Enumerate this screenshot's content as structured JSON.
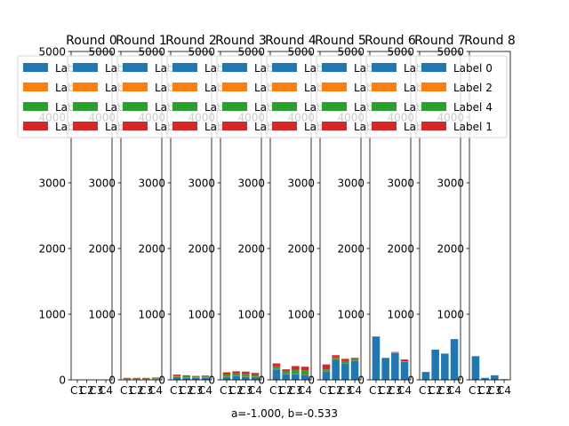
{
  "figure": {
    "suptitle_bottom": "a=-1.000, b=-0.533",
    "colors": {
      "Label 0": "#1f77b4",
      "Label 2": "#ff7f0e",
      "Label 4": "#2ca02c",
      "Label 1": "#d62728"
    }
  },
  "chart_data": [
    {
      "type": "bar",
      "stacked": true,
      "title": "Round 0",
      "categories": [
        "C1",
        "C2",
        "C3",
        "C4"
      ],
      "ylim": [
        0,
        5000
      ],
      "yticks": [
        0,
        1000,
        2000,
        3000,
        4000,
        5000
      ],
      "legend": "upper left",
      "series": [
        {
          "name": "Label 0",
          "values": [
            0,
            0,
            0,
            0
          ]
        },
        {
          "name": "Label 2",
          "values": [
            0,
            0,
            0,
            0
          ]
        },
        {
          "name": "Label 4",
          "values": [
            0,
            0,
            0,
            0
          ]
        },
        {
          "name": "Label 1",
          "values": [
            0,
            0,
            0,
            0
          ]
        }
      ]
    },
    {
      "type": "bar",
      "stacked": true,
      "title": "Round 1",
      "categories": [
        "C1",
        "C2",
        "C3",
        "C4"
      ],
      "ylim": [
        0,
        5000
      ],
      "yticks": [
        0,
        1000,
        2000,
        3000,
        4000,
        5000
      ],
      "legend": "upper left",
      "series": [
        {
          "name": "Label 0",
          "values": [
            10,
            10,
            10,
            10
          ]
        },
        {
          "name": "Label 2",
          "values": [
            5,
            5,
            5,
            5
          ]
        },
        {
          "name": "Label 4",
          "values": [
            5,
            5,
            5,
            10
          ]
        },
        {
          "name": "Label 1",
          "values": [
            10,
            10,
            10,
            10
          ]
        }
      ]
    },
    {
      "type": "bar",
      "stacked": true,
      "title": "Round 2",
      "categories": [
        "C1",
        "C2",
        "C3",
        "C4"
      ],
      "ylim": [
        0,
        5000
      ],
      "yticks": [
        0,
        1000,
        2000,
        3000,
        4000,
        5000
      ],
      "legend": "upper left",
      "series": [
        {
          "name": "Label 0",
          "values": [
            40,
            30,
            30,
            30
          ]
        },
        {
          "name": "Label 2",
          "values": [
            5,
            5,
            5,
            5
          ]
        },
        {
          "name": "Label 4",
          "values": [
            20,
            20,
            15,
            15
          ]
        },
        {
          "name": "Label 1",
          "values": [
            15,
            15,
            10,
            15
          ]
        }
      ]
    },
    {
      "type": "bar",
      "stacked": true,
      "title": "Round 3",
      "categories": [
        "C1",
        "C2",
        "C3",
        "C4"
      ],
      "ylim": [
        0,
        5000
      ],
      "yticks": [
        0,
        1000,
        2000,
        3000,
        4000,
        5000
      ],
      "legend": "upper left",
      "series": [
        {
          "name": "Label 0",
          "values": [
            40,
            60,
            50,
            40
          ]
        },
        {
          "name": "Label 2",
          "values": [
            5,
            5,
            5,
            5
          ]
        },
        {
          "name": "Label 4",
          "values": [
            35,
            35,
            35,
            30
          ]
        },
        {
          "name": "Label 1",
          "values": [
            35,
            30,
            35,
            30
          ]
        }
      ]
    },
    {
      "type": "bar",
      "stacked": true,
      "title": "Round 4",
      "categories": [
        "C1",
        "C2",
        "C3",
        "C4"
      ],
      "ylim": [
        0,
        5000
      ],
      "yticks": [
        0,
        1000,
        2000,
        3000,
        4000,
        5000
      ],
      "legend": "upper left",
      "series": [
        {
          "name": "Label 0",
          "values": [
            160,
            90,
            90,
            75
          ]
        },
        {
          "name": "Label 2",
          "values": [
            5,
            5,
            5,
            5
          ]
        },
        {
          "name": "Label 4",
          "values": [
            40,
            35,
            60,
            65
          ]
        },
        {
          "name": "Label 1",
          "values": [
            45,
            30,
            55,
            55
          ]
        }
      ]
    },
    {
      "type": "bar",
      "stacked": true,
      "title": "Round 5",
      "categories": [
        "C1",
        "C2",
        "C3",
        "C4"
      ],
      "ylim": [
        0,
        5000
      ],
      "yticks": [
        0,
        1000,
        2000,
        3000,
        4000,
        5000
      ],
      "legend": "upper left",
      "series": [
        {
          "name": "Label 0",
          "values": [
            130,
            310,
            250,
            290
          ]
        },
        {
          "name": "Label 2",
          "values": [
            5,
            5,
            5,
            5
          ]
        },
        {
          "name": "Label 4",
          "values": [
            25,
            25,
            30,
            25
          ]
        },
        {
          "name": "Label 1",
          "values": [
            75,
            35,
            35,
            15
          ]
        }
      ]
    },
    {
      "type": "bar",
      "stacked": true,
      "title": "Round 6",
      "categories": [
        "C1",
        "C2",
        "C3",
        "C4"
      ],
      "ylim": [
        0,
        5000
      ],
      "yticks": [
        0,
        1000,
        2000,
        3000,
        4000,
        5000
      ],
      "legend": "upper left",
      "series": [
        {
          "name": "Label 0",
          "values": [
            660,
            330,
            410,
            270
          ]
        },
        {
          "name": "Label 2",
          "values": [
            0,
            0,
            5,
            5
          ]
        },
        {
          "name": "Label 4",
          "values": [
            0,
            0,
            5,
            5
          ]
        },
        {
          "name": "Label 1",
          "values": [
            0,
            5,
            5,
            30
          ]
        }
      ]
    },
    {
      "type": "bar",
      "stacked": true,
      "title": "Round 7",
      "categories": [
        "C1",
        "C2",
        "C3",
        "C4"
      ],
      "ylim": [
        0,
        5000
      ],
      "yticks": [
        0,
        1000,
        2000,
        3000,
        4000,
        5000
      ],
      "legend": "upper left",
      "series": [
        {
          "name": "Label 0",
          "values": [
            120,
            460,
            400,
            620
          ]
        },
        {
          "name": "Label 2",
          "values": [
            0,
            0,
            0,
            0
          ]
        },
        {
          "name": "Label 4",
          "values": [
            0,
            0,
            0,
            0
          ]
        },
        {
          "name": "Label 1",
          "values": [
            0,
            0,
            0,
            0
          ]
        }
      ]
    },
    {
      "type": "bar",
      "stacked": true,
      "title": "Round 8",
      "categories": [
        "C1",
        "C2",
        "C3",
        "C4"
      ],
      "ylim": [
        0,
        5000
      ],
      "yticks": [
        0,
        1000,
        2000,
        3000,
        4000,
        5000
      ],
      "legend": "upper left",
      "series": [
        {
          "name": "Label 0",
          "values": [
            360,
            30,
            70,
            10
          ]
        },
        {
          "name": "Label 2",
          "values": [
            0,
            0,
            0,
            0
          ]
        },
        {
          "name": "Label 4",
          "values": [
            0,
            0,
            0,
            0
          ]
        },
        {
          "name": "Label 1",
          "values": [
            0,
            0,
            0,
            0
          ]
        }
      ]
    }
  ]
}
